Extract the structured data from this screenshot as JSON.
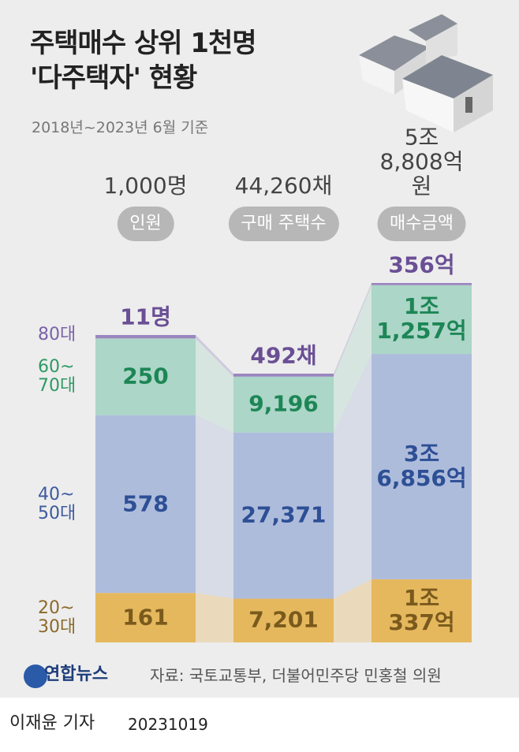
{
  "chart_data": {
    "type": "stacked-column",
    "title": "주택매수 상위 1천명\n'다주택자' 현황",
    "subtitle": "2018년~2023년 6월 기준",
    "categories": [
      "인원",
      "구매 주택수",
      "매수금액"
    ],
    "totals": [
      1000,
      44260,
      58808
    ],
    "total_labels": [
      "1,000명",
      "44,260채",
      "5조\n8,808억 원"
    ],
    "series": [
      {
        "name": "20~\n30대",
        "color": "#e5b85e",
        "text_color": "#7a5a1c",
        "legend_color": "#8b6a2a",
        "values": [
          161,
          7201,
          10337
        ],
        "value_labels": [
          "161",
          "7,201",
          "1조\n337억"
        ]
      },
      {
        "name": "40~\n50대",
        "color": "#aebcdc",
        "text_color": "#2d4f95",
        "legend_color": "#3d5a9e",
        "values": [
          578,
          27371,
          36856
        ],
        "value_labels": [
          "578",
          "27,371",
          "3조\n6,856억"
        ]
      },
      {
        "name": "60~\n70대",
        "color": "#acd6c7",
        "text_color": "#1d8656",
        "legend_color": "#2e9a63",
        "values": [
          250,
          9196,
          11257
        ],
        "value_labels": [
          "250",
          "9,196",
          "1조\n1,257억"
        ]
      },
      {
        "name": "80대",
        "color": "#9b86c0",
        "text_color": "#6a4f95",
        "legend_color": "#7a62a8",
        "values": [
          11,
          492,
          356
        ],
        "value_labels": [
          "11명",
          "492채",
          "356억"
        ]
      }
    ],
    "logo": "연합뉴스",
    "source": "자료: 국토교통부, 더불어민주당 민홍철 의원",
    "byline": "이재윤 기자",
    "date": "20231019"
  }
}
